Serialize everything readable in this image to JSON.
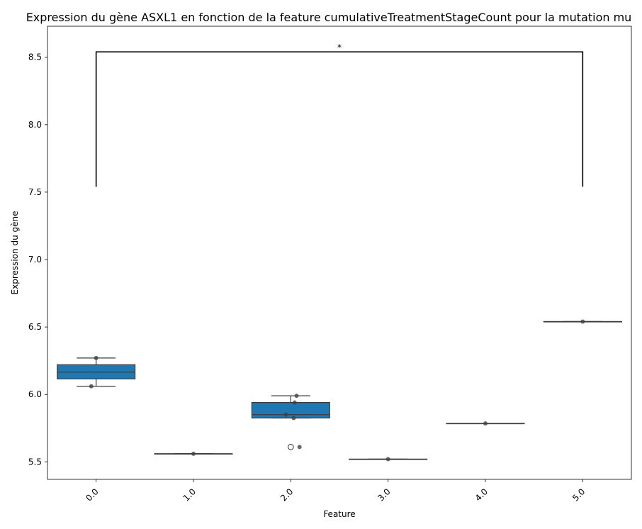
{
  "chart_data": {
    "type": "box",
    "title": "Expression du gène ASXL1 en fonction de la feature cumulativeTreatmentStageCount pour la mutation mu",
    "xlabel": "Feature",
    "ylabel": "Expression du gène",
    "categories": [
      "0.0",
      "1.0",
      "2.0",
      "3.0",
      "4.0",
      "5.0"
    ],
    "ylim": [
      5.37,
      8.73
    ],
    "yticks": [
      "5.5",
      "6.0",
      "6.5",
      "7.0",
      "7.5",
      "8.0",
      "8.5"
    ],
    "box_color": "#1f77b4",
    "boxes": [
      {
        "category": "0.0",
        "min": 6.06,
        "q1": 6.115,
        "median": 6.165,
        "q3": 6.22,
        "max": 6.27
      },
      {
        "category": "1.0",
        "min": 5.56,
        "q1": 5.56,
        "median": 5.56,
        "q3": 5.56,
        "max": 5.56
      },
      {
        "category": "2.0",
        "min": 5.825,
        "q1": 5.825,
        "median": 5.85,
        "q3": 5.94,
        "max": 5.99,
        "outliers": [
          5.61
        ]
      },
      {
        "category": "3.0",
        "min": 5.52,
        "q1": 5.52,
        "median": 5.52,
        "q3": 5.52,
        "max": 5.52
      },
      {
        "category": "4.0",
        "min": 5.785,
        "q1": 5.785,
        "median": 5.785,
        "q3": 5.785,
        "max": 5.785
      },
      {
        "category": "5.0",
        "min": 6.54,
        "q1": 6.54,
        "median": 6.54,
        "q3": 6.54,
        "max": 6.54
      }
    ],
    "points": [
      {
        "category": "0.0",
        "offset": 0.0,
        "y": 6.27
      },
      {
        "category": "0.0",
        "offset": -0.05,
        "y": 6.06
      },
      {
        "category": "1.0",
        "offset": 0.0,
        "y": 5.56
      },
      {
        "category": "2.0",
        "offset": 0.06,
        "y": 5.99
      },
      {
        "category": "2.0",
        "offset": 0.04,
        "y": 5.94
      },
      {
        "category": "2.0",
        "offset": -0.05,
        "y": 5.85
      },
      {
        "category": "2.0",
        "offset": 0.03,
        "y": 5.825
      },
      {
        "category": "2.0",
        "offset": 0.09,
        "y": 5.61
      },
      {
        "category": "3.0",
        "offset": 0.0,
        "y": 5.52
      },
      {
        "category": "4.0",
        "offset": 0.0,
        "y": 5.785
      },
      {
        "category": "5.0",
        "offset": 0.0,
        "y": 6.54
      }
    ],
    "significance": {
      "from": "0.0",
      "to": "5.0",
      "y": 8.54,
      "y_bottom": 7.54,
      "label": "*"
    }
  }
}
